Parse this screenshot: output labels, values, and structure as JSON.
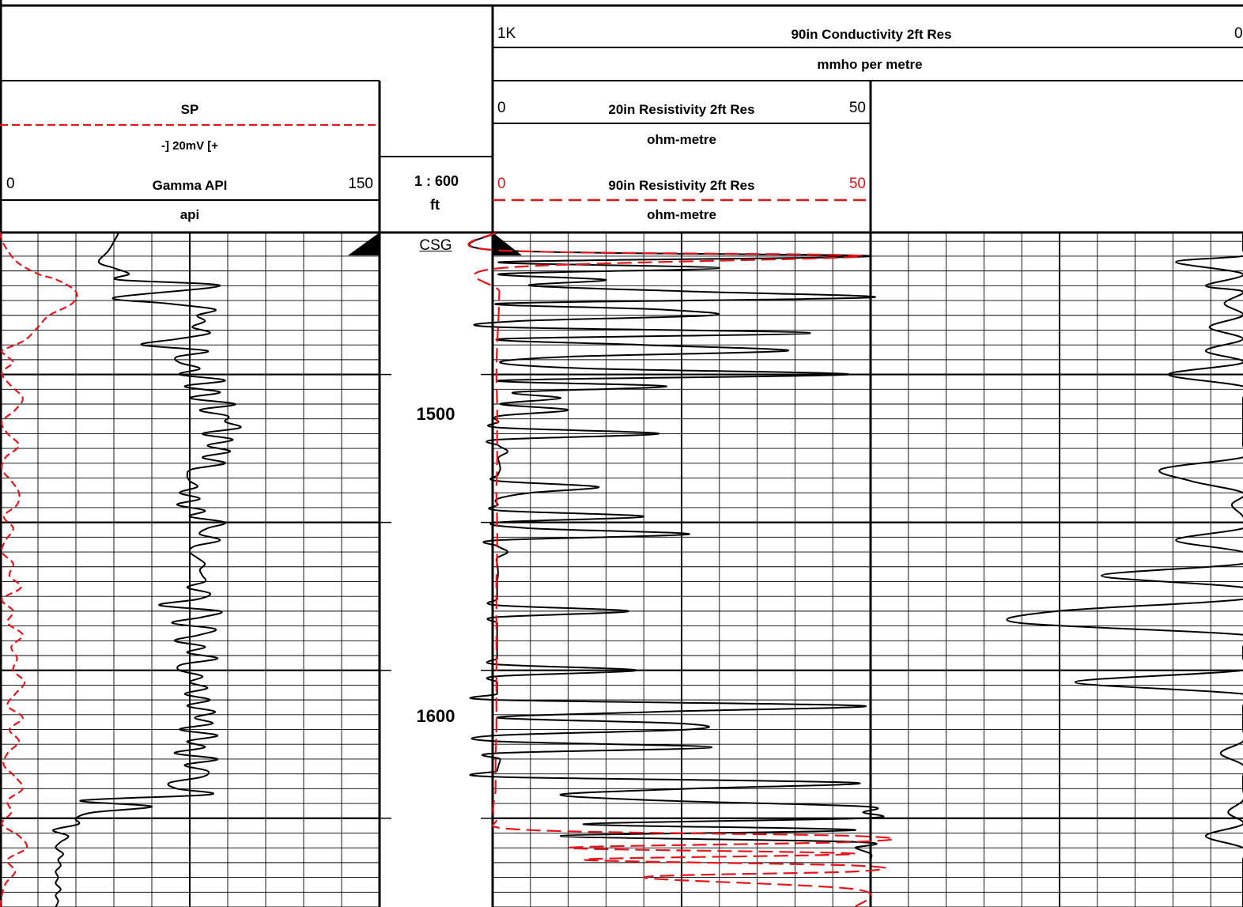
{
  "header": {
    "conductivity": {
      "left": "1K",
      "title": "90in Conductivity 2ft Res",
      "right": "0",
      "unit": "mmho per metre"
    },
    "sp": {
      "title": "SP",
      "unit": "-] 20mV [+"
    },
    "gamma": {
      "left": "0",
      "title": "Gamma API",
      "right": "150",
      "unit": "api"
    },
    "scale": {
      "ratio": "1 : 600",
      "unit": "ft"
    },
    "res20": {
      "left": "0",
      "title": "20in Resistivity 2ft Res",
      "right": "50",
      "unit": "ohm-metre"
    },
    "res90": {
      "left": "0",
      "title": "90in Resistivity 2ft Res",
      "right": "50",
      "unit": "ohm-metre"
    }
  },
  "depth_track": {
    "marker": "CSG",
    "labels": [
      "1500",
      "1600"
    ]
  },
  "colors": {
    "grid": "#000000",
    "curve": "#000000",
    "red_curve": "#e8141b"
  },
  "chart_data": {
    "type": "line",
    "title": "",
    "depth_unit": "ft",
    "depth_range": [
      1452,
      1680
    ],
    "depth_ticks": [
      1500,
      1600
    ],
    "series": [
      {
        "name": "Gamma API",
        "unit": "api",
        "range": [
          0,
          150
        ],
        "line": "solid",
        "color": "#000000",
        "depth": [
          1452,
          1458,
          1462,
          1464,
          1466,
          1468,
          1470,
          1474,
          1476,
          1478,
          1480,
          1482,
          1484,
          1486,
          1488,
          1490,
          1492,
          1494,
          1496,
          1498,
          1500,
          1502,
          1504,
          1506,
          1508,
          1510,
          1512,
          1514,
          1516,
          1518,
          1520,
          1522,
          1524,
          1526,
          1528,
          1530,
          1532,
          1534,
          1536,
          1538,
          1540,
          1542,
          1544,
          1546,
          1548,
          1550,
          1552,
          1554,
          1556,
          1558,
          1560,
          1562,
          1564,
          1566,
          1568,
          1570,
          1572,
          1574,
          1576,
          1578,
          1580,
          1582,
          1584,
          1586,
          1588,
          1590,
          1592,
          1594,
          1596,
          1598,
          1600,
          1602,
          1604,
          1606,
          1608,
          1610,
          1612,
          1614,
          1616,
          1618,
          1620,
          1622,
          1624,
          1626,
          1628,
          1630,
          1632,
          1634,
          1636,
          1638,
          1640,
          1642,
          1644,
          1646,
          1648,
          1650,
          1652,
          1654,
          1656,
          1658,
          1660,
          1662,
          1664,
          1666,
          1668,
          1670,
          1672,
          1674,
          1676,
          1678,
          1680
        ],
        "values": [
          47,
          43,
          39,
          45,
          51,
          47,
          87,
          45,
          66,
          85,
          78,
          81,
          76,
          83,
          70,
          56,
          82,
          70,
          71,
          79,
          71,
          89,
          73,
          87,
          75,
          93,
          79,
          90,
          89,
          95,
          80,
          92,
          82,
          91,
          80,
          89,
          76,
          74,
          75,
          78,
          71,
          79,
          70,
          81,
          75,
          89,
          82,
          79,
          87,
          77,
          75,
          78,
          81,
          79,
          80,
          81,
          74,
          83,
          78,
          63,
          87,
          80,
          68,
          85,
          79,
          69,
          81,
          74,
          86,
          72,
          71,
          80,
          75,
          82,
          73,
          83,
          74,
          85,
          77,
          84,
          71,
          86,
          74,
          81,
          69,
          86,
          73,
          82,
          80,
          67,
          70,
          83,
          32,
          60,
          37,
          30,
          31,
          21,
          27,
          24,
          22,
          25,
          23,
          24,
          22,
          23,
          22,
          24,
          22,
          23,
          22
        ]
      },
      {
        "name": "SP",
        "unit": "-] 20mV [+",
        "range": [
          -100,
          100
        ],
        "line": "dashed",
        "color": "#e8141b",
        "depth": [
          1452,
          1456,
          1462,
          1466,
          1468,
          1472,
          1476,
          1480,
          1484,
          1488,
          1490,
          1492,
          1494,
          1496,
          1498,
          1500,
          1504,
          1508,
          1512,
          1516,
          1520,
          1524,
          1528,
          1532,
          1536,
          1540,
          1544,
          1548,
          1552,
          1556,
          1560,
          1564,
          1568,
          1572,
          1576,
          1580,
          1584,
          1588,
          1592,
          1596,
          1600,
          1604,
          1608,
          1612,
          1616,
          1620,
          1624,
          1628,
          1632,
          1636,
          1640,
          1644,
          1648,
          1652,
          1656,
          1660,
          1664,
          1668,
          1672,
          1676,
          1680
        ],
        "values": [
          -100,
          -98,
          -91,
          -80,
          -70,
          -60,
          -62,
          -74,
          -80,
          -86,
          -92,
          -99,
          -96,
          -93,
          -97,
          -99,
          -94,
          -88,
          -92,
          -99,
          -96,
          -90,
          -97,
          -99,
          -94,
          -90,
          -91,
          -98,
          -93,
          -97,
          -99,
          -93,
          -95,
          -89,
          -99,
          -93,
          -96,
          -88,
          -94,
          -91,
          -93,
          -87,
          -92,
          -96,
          -88,
          -95,
          -90,
          -96,
          -98,
          -92,
          -88,
          -96,
          -94,
          -99,
          -90,
          -86,
          -96,
          -92,
          -97,
          -99,
          -100
        ]
      },
      {
        "name": "20in Resistivity 2ft Res",
        "unit": "ohm-metre",
        "range": [
          0,
          50
        ],
        "line": "solid",
        "color": "#000000",
        "depth": [
          1452,
          1458,
          1460,
          1462,
          1464,
          1466,
          1468,
          1470,
          1472,
          1474,
          1476,
          1478,
          1480,
          1482,
          1484,
          1486,
          1488,
          1490,
          1492,
          1494,
          1496,
          1498,
          1500,
          1502,
          1504,
          1506,
          1508,
          1510,
          1512,
          1514,
          1516,
          1518,
          1520,
          1522,
          1524,
          1526,
          1528,
          1530,
          1532,
          1534,
          1536,
          1538,
          1540,
          1542,
          1544,
          1546,
          1548,
          1550,
          1552,
          1554,
          1556,
          1558,
          1560,
          1562,
          1564,
          1566,
          1568,
          1570,
          1572,
          1574,
          1576,
          1578,
          1580,
          1582,
          1584,
          1586,
          1588,
          1590,
          1592,
          1594,
          1596,
          1598,
          1600,
          1602,
          1604,
          1606,
          1608,
          1610,
          1612,
          1614,
          1616,
          1618,
          1620,
          1622,
          1624,
          1626,
          1628,
          1630,
          1632,
          1634,
          1636,
          1638,
          1640,
          1642,
          1644,
          1646,
          1648,
          1650,
          1652,
          1654,
          1656,
          1658,
          1660,
          1662,
          1664,
          1666,
          1668,
          1670,
          1672,
          1674,
          1676,
          1678,
          1680
        ],
        "values": [
          0.6,
          0.6,
          50,
          1,
          30,
          1,
          15,
          5,
          27,
          50,
          1,
          22,
          29,
          3,
          1,
          42,
          1,
          20,
          39,
          10,
          1,
          13,
          47,
          1,
          23,
          3,
          9,
          1,
          10,
          0.9,
          0.8,
          1,
          22,
          0.8,
          0.8,
          2,
          0.8,
          0.9,
          1,
          0.7,
          0.7,
          14,
          5,
          0.7,
          0.7,
          1,
          20,
          0.7,
          5,
          26,
          0.7,
          0.7,
          2,
          0.6,
          0.6,
          0.7,
          0.7,
          0.6,
          0.6,
          0.6,
          0.6,
          0.6,
          18,
          0.6,
          0.6,
          0.6,
          0.6,
          0.6,
          0.6,
          0.6,
          0.6,
          0.6,
          19,
          0.6,
          0.6,
          0.6,
          0.6,
          0.6,
          49,
          22,
          0.6,
          25,
          26,
          0.6,
          0.6,
          29,
          0.6,
          1,
          0.8,
          0.6,
          0.5,
          48,
          26,
          9,
          22,
          49,
          49,
          49,
          12,
          48,
          9,
          48,
          48,
          50,
          50,
          50,
          50,
          50,
          50,
          50,
          50,
          50,
          50
        ]
      },
      {
        "name": "90in Resistivity 2ft Res",
        "unit": "ohm-metre",
        "range": [
          0,
          50
        ],
        "line": "dashed",
        "color": "#e8141b",
        "depth": [
          1452,
          1458,
          1460,
          1464,
          1472,
          1480,
          1490,
          1500,
          1510,
          1520,
          1530,
          1540,
          1550,
          1560,
          1570,
          1580,
          1590,
          1600,
          1610,
          1620,
          1630,
          1640,
          1650,
          1654,
          1656,
          1658,
          1660,
          1662,
          1664,
          1666,
          1668,
          1670,
          1674,
          1680
        ],
        "values": [
          0.4,
          0.4,
          49,
          1.2,
          0.9,
          0.8,
          0.6,
          0.5,
          0.6,
          0.6,
          0.6,
          0.5,
          0.6,
          0.6,
          0.5,
          0.5,
          0.5,
          0.5,
          0.5,
          0.5,
          0.4,
          0.4,
          0.4,
          5,
          48,
          48,
          10,
          48,
          12,
          48,
          48,
          20,
          48,
          48
        ]
      },
      {
        "name": "90in Conductivity 2ft Res",
        "unit": "mmho per metre",
        "range": [
          1000,
          0
        ],
        "line": "solid",
        "color": "#000000",
        "depth": [
          1452,
          1458,
          1460,
          1462,
          1466,
          1470,
          1472,
          1476,
          1480,
          1484,
          1488,
          1492,
          1496,
          1500,
          1504,
          1508,
          1512,
          1516,
          1520,
          1524,
          1528,
          1532,
          1536,
          1540,
          1544,
          1548,
          1552,
          1556,
          1560,
          1564,
          1568,
          1572,
          1576,
          1580,
          1584,
          1588,
          1592,
          1596,
          1600,
          1604,
          1608,
          1612,
          1616,
          1620,
          1624,
          1628,
          1632,
          1636,
          1640,
          1644,
          1648,
          1652,
          1656,
          1660,
          1664,
          1668,
          1672,
          1676,
          1680
        ],
        "values": [
          0,
          0,
          0,
          180,
          0,
          100,
          0,
          50,
          0,
          90,
          0,
          100,
          0,
          200,
          0,
          0,
          0,
          0,
          0,
          0,
          0,
          220,
          140,
          0,
          30,
          0,
          0,
          180,
          0,
          0,
          380,
          0,
          0,
          500,
          600,
          0,
          0,
          0,
          0,
          450,
          0,
          0,
          0,
          0,
          0,
          60,
          0,
          0,
          0,
          0,
          40,
          0,
          100,
          0,
          0,
          0,
          0,
          0,
          0
        ]
      }
    ]
  }
}
